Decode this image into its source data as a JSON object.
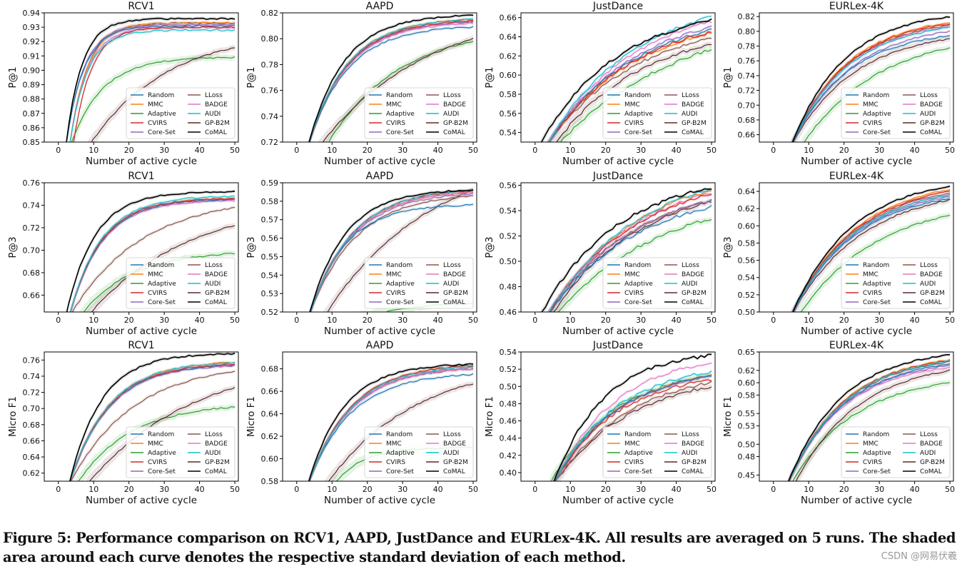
{
  "figure": {
    "caption": "Figure 5: Performance comparison on RCV1, AAPD, JustDance and EURLex-4K. All results are averaged on 5 runs. The shaded area around each curve denotes the respective standard deviation of each method.",
    "watermark": "CSDN @网易伏羲"
  },
  "legend": [
    {
      "name": "Random",
      "color": "#1f77b4"
    },
    {
      "name": "LLoss",
      "color": "#8c564b"
    },
    {
      "name": "MMC",
      "color": "#ff7f0e"
    },
    {
      "name": "BADGE",
      "color": "#e377c2"
    },
    {
      "name": "Adaptive",
      "color": "#2ca02c"
    },
    {
      "name": "AUDI",
      "color": "#17becf"
    },
    {
      "name": "CVIRS",
      "color": "#d62728"
    },
    {
      "name": "GP-B2M",
      "color": "#5c2a2a"
    },
    {
      "name": "Core-Set",
      "color": "#9467bd"
    },
    {
      "name": "CoMAL",
      "color": "#000000"
    }
  ],
  "chart_data": [
    {
      "type": "line",
      "title": "RCV1",
      "xlabel": "Number of active cycle",
      "ylabel": "P@1",
      "xlim": [
        -4,
        51
      ],
      "ylim": [
        0.85,
        0.94
      ],
      "xticks": [
        "0",
        "10",
        "20",
        "30",
        "40",
        "50"
      ],
      "yticks": [
        "0.85",
        "0.86",
        "0.87",
        "0.88",
        "0.89",
        "0.90",
        "0.91",
        "0.92",
        "0.93",
        "0.94"
      ],
      "start": [
        2,
        3,
        3,
        3,
        3,
        3,
        4,
        8,
        2,
        2
      ],
      "base": 0.845,
      "final": [
        0.931,
        0.933,
        0.933,
        0.93,
        0.909,
        0.928,
        0.93,
        0.916,
        0.932,
        0.936
      ],
      "tau": [
        5,
        5,
        5,
        5,
        9,
        5,
        5,
        22,
        5,
        4.5
      ],
      "legend": "lower-right"
    },
    {
      "type": "line",
      "title": "AAPD",
      "xlabel": "Number of active cycle",
      "ylabel": "P@1",
      "xlim": [
        -4,
        51
      ],
      "ylim": [
        0.72,
        0.82
      ],
      "xticks": [
        "0",
        "10",
        "20",
        "30",
        "40",
        "50"
      ],
      "yticks": [
        "0.72",
        "0.74",
        "0.76",
        "0.78",
        "0.80",
        "0.82"
      ],
      "start": [
        3,
        3,
        3,
        3,
        8,
        3,
        3,
        6,
        3,
        3
      ],
      "base": 0.715,
      "final": [
        0.809,
        0.813,
        0.815,
        0.812,
        0.798,
        0.815,
        0.814,
        0.8,
        0.813,
        0.818
      ],
      "tau": [
        11,
        11,
        11,
        11,
        20,
        11,
        11,
        30,
        11,
        10
      ],
      "legend": "lower-right"
    },
    {
      "type": "line",
      "title": "JustDance",
      "xlabel": "Number of active cycle",
      "ylabel": "P@1",
      "xlim": [
        -4,
        51
      ],
      "ylim": [
        0.53,
        0.665
      ],
      "xticks": [
        "0",
        "10",
        "20",
        "30",
        "40",
        "50"
      ],
      "yticks": [
        "0.54",
        "0.56",
        "0.58",
        "0.60",
        "0.62",
        "0.64",
        "0.66"
      ],
      "start": [
        3,
        3,
        3,
        3,
        6,
        3,
        3,
        5,
        3,
        1
      ],
      "base": 0.525,
      "final": [
        0.647,
        0.638,
        0.644,
        0.656,
        0.627,
        0.661,
        0.645,
        0.632,
        0.65,
        0.657
      ],
      "tau": [
        25,
        25,
        25,
        25,
        35,
        25,
        25,
        25,
        25,
        22
      ],
      "legend": "lower-right"
    },
    {
      "type": "line",
      "title": "EURLex-4K",
      "xlabel": "Number of active cycle",
      "ylabel": "P@1",
      "xlim": [
        -4,
        51
      ],
      "ylim": [
        0.65,
        0.825
      ],
      "xticks": [
        "0",
        "10",
        "20",
        "30",
        "40",
        "50"
      ],
      "yticks": [
        "0.66",
        "0.68",
        "0.70",
        "0.72",
        "0.74",
        "0.76",
        "0.78",
        "0.80",
        "0.82"
      ],
      "start": [
        5,
        5,
        5,
        5,
        8,
        5,
        5,
        5,
        5,
        5
      ],
      "base": 0.645,
      "final": [
        0.794,
        0.808,
        0.812,
        0.806,
        0.778,
        0.805,
        0.81,
        0.79,
        0.8,
        0.82
      ],
      "tau": [
        16,
        16,
        16,
        16,
        22,
        16,
        16,
        18,
        17,
        15
      ],
      "legend": "lower-right"
    },
    {
      "type": "line",
      "title": "RCV1",
      "xlabel": "Number of active cycle",
      "ylabel": "P@3",
      "xlim": [
        -4,
        51
      ],
      "ylim": [
        0.645,
        0.76
      ],
      "xticks": [
        "0",
        "10",
        "20",
        "30",
        "40",
        "50"
      ],
      "yticks": [
        "0.66",
        "0.68",
        "0.70",
        "0.72",
        "0.74",
        "0.76"
      ],
      "start": [
        3,
        3,
        3,
        3,
        6,
        3,
        3,
        8,
        3,
        2
      ],
      "base": 0.64,
      "final": [
        0.745,
        0.738,
        0.746,
        0.744,
        0.697,
        0.748,
        0.746,
        0.722,
        0.745,
        0.752
      ],
      "tau": [
        9,
        20,
        9,
        9,
        14,
        9,
        9,
        28,
        9,
        8
      ],
      "legend": "lower-right"
    },
    {
      "type": "line",
      "title": "AAPD",
      "xlabel": "Number of active cycle",
      "ylabel": "P@3",
      "xlim": [
        -4,
        51
      ],
      "ylim": [
        0.52,
        0.59
      ],
      "xticks": [
        "0",
        "10",
        "20",
        "30",
        "40",
        "50"
      ],
      "yticks": [
        "0.52",
        "0.53",
        "0.54",
        "0.55",
        "0.56",
        "0.57",
        "0.58",
        "0.59"
      ],
      "start": [
        3,
        3,
        3,
        3,
        14,
        3,
        3,
        7,
        3,
        3
      ],
      "base": 0.515,
      "final": [
        0.578,
        0.583,
        0.585,
        0.585,
        0.525,
        0.586,
        0.586,
        0.586,
        0.584,
        0.586
      ],
      "tau": [
        10,
        13,
        12,
        12,
        20,
        12,
        12,
        30,
        12,
        10
      ],
      "legend": "lower-right"
    },
    {
      "type": "line",
      "title": "JustDance",
      "xlabel": "Number of active cycle",
      "ylabel": "P@3",
      "xlim": [
        -4,
        51
      ],
      "ylim": [
        0.46,
        0.562
      ],
      "xticks": [
        "0",
        "10",
        "20",
        "30",
        "40",
        "50"
      ],
      "yticks": [
        "0.46",
        "0.48",
        "0.50",
        "0.52",
        "0.54",
        "0.56"
      ],
      "start": [
        3,
        3,
        3,
        3,
        5,
        3,
        3,
        4,
        3,
        1
      ],
      "base": 0.455,
      "final": [
        0.543,
        0.548,
        0.556,
        0.554,
        0.534,
        0.557,
        0.553,
        0.547,
        0.548,
        0.558
      ],
      "tau": [
        25,
        25,
        25,
        25,
        30,
        25,
        25,
        25,
        25,
        22
      ],
      "legend": "lower-right"
    },
    {
      "type": "line",
      "title": "EURLex-4K",
      "xlabel": "Number of active cycle",
      "ylabel": "P@3",
      "xlim": [
        -4,
        51
      ],
      "ylim": [
        0.5,
        0.65
      ],
      "xticks": [
        "0",
        "10",
        "20",
        "30",
        "40",
        "50"
      ],
      "yticks": [
        "0.50",
        "0.52",
        "0.54",
        "0.56",
        "0.58",
        "0.60",
        "0.62",
        "0.64"
      ],
      "start": [
        5,
        5,
        5,
        5,
        7,
        5,
        5,
        5,
        5,
        5
      ],
      "base": 0.495,
      "final": [
        0.632,
        0.638,
        0.642,
        0.636,
        0.612,
        0.636,
        0.64,
        0.63,
        0.634,
        0.646
      ],
      "tau": [
        18,
        18,
        18,
        18,
        22,
        18,
        18,
        20,
        18,
        17
      ],
      "legend": "lower-right"
    },
    {
      "type": "line",
      "title": "RCV1",
      "xlabel": "Number of active cycle",
      "ylabel": "Micro F1",
      "xlim": [
        -4,
        51
      ],
      "ylim": [
        0.61,
        0.77
      ],
      "xticks": [
        "0",
        "10",
        "20",
        "30",
        "40",
        "50"
      ],
      "yticks": [
        "0.62",
        "0.64",
        "0.66",
        "0.68",
        "0.70",
        "0.72",
        "0.74",
        "0.76"
      ],
      "start": [
        3,
        3,
        3,
        3,
        5,
        3,
        3,
        8,
        3,
        3
      ],
      "base": 0.605,
      "final": [
        0.754,
        0.746,
        0.757,
        0.754,
        0.702,
        0.757,
        0.755,
        0.726,
        0.753,
        0.768
      ],
      "tau": [
        11,
        18,
        11,
        11,
        15,
        11,
        11,
        30,
        11,
        9
      ],
      "legend": "lower-right"
    },
    {
      "type": "line",
      "title": "AAPD",
      "xlabel": "Number of active cycle",
      "ylabel": "Micro F1",
      "xlim": [
        -4,
        51
      ],
      "ylim": [
        0.58,
        0.695
      ],
      "xticks": [
        "0",
        "10",
        "20",
        "30",
        "40",
        "50"
      ],
      "yticks": [
        "0.58",
        "0.60",
        "0.62",
        "0.64",
        "0.66",
        "0.68"
      ],
      "start": [
        3,
        3,
        3,
        3,
        10,
        3,
        3,
        8,
        3,
        3
      ],
      "base": 0.575,
      "final": [
        0.675,
        0.68,
        0.683,
        0.68,
        0.61,
        0.682,
        0.683,
        0.667,
        0.681,
        0.684
      ],
      "tau": [
        12,
        12,
        12,
        12,
        8,
        12,
        12,
        25,
        12,
        10
      ],
      "legend": "lower-right"
    },
    {
      "type": "line",
      "title": "JustDance",
      "xlabel": "Number of active cycle",
      "ylabel": "Micro F1",
      "xlim": [
        -4,
        51
      ],
      "ylim": [
        0.39,
        0.54
      ],
      "xticks": [
        "0",
        "10",
        "20",
        "30",
        "40",
        "50"
      ],
      "yticks": [
        "0.40",
        "0.42",
        "0.44",
        "0.46",
        "0.48",
        "0.50",
        "0.52",
        "0.54"
      ],
      "start": [
        5,
        5,
        5,
        5,
        4,
        5,
        5,
        5,
        5,
        5
      ],
      "base": 0.385,
      "final": [
        0.512,
        0.505,
        0.512,
        0.528,
        0.512,
        0.517,
        0.508,
        0.5,
        0.512,
        0.536
      ],
      "tau": [
        18,
        22,
        18,
        18,
        18,
        18,
        18,
        22,
        18,
        14
      ],
      "legend": "lower-right"
    },
    {
      "type": "line",
      "title": "EURLex-4K",
      "xlabel": "Number of active cycle",
      "ylabel": "Micro F1",
      "xlim": [
        -4,
        51
      ],
      "ylim": [
        0.44,
        0.65
      ],
      "xticks": [
        "0",
        "10",
        "20",
        "30",
        "40",
        "50"
      ],
      "yticks": [
        "0.45",
        "0.48",
        "0.50",
        "0.53",
        "0.55",
        "0.58",
        "0.60",
        "0.62",
        "0.65"
      ],
      "start": [
        4,
        4,
        4,
        4,
        5,
        4,
        4,
        6,
        4,
        4
      ],
      "base": 0.435,
      "final": [
        0.63,
        0.634,
        0.637,
        0.625,
        0.6,
        0.635,
        0.636,
        0.62,
        0.628,
        0.645
      ],
      "tau": [
        16,
        16,
        16,
        16,
        18,
        16,
        16,
        18,
        16,
        15
      ],
      "legend": "lower-right"
    }
  ]
}
